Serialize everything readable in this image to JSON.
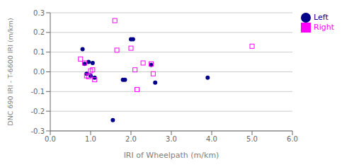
{
  "chart_data": {
    "type": "scatter",
    "x_label": "IRI of Wheelpath (m/km)",
    "y_label": "DNC 690 IRI - T-6600 IRI (m/km)",
    "series": [
      {
        "name": "Left",
        "color": "#00008B",
        "marker": "circle",
        "x": [
          0.8,
          0.85,
          0.9,
          0.95,
          1.0,
          1.05,
          1.1,
          1.55,
          1.8,
          1.85,
          2.0,
          2.05,
          2.5,
          2.6,
          3.9
        ],
        "values": [
          0.115,
          0.04,
          -0.01,
          0.05,
          -0.02,
          0.045,
          -0.03,
          -0.245,
          -0.04,
          -0.04,
          0.165,
          0.165,
          0.035,
          -0.055,
          -0.03
        ]
      },
      {
        "name": "Right",
        "color": "#FF00FF",
        "marker": "open_square",
        "x": [
          0.75,
          0.85,
          0.9,
          0.95,
          1.0,
          1.05,
          1.1,
          1.6,
          1.65,
          2.0,
          2.1,
          2.15,
          2.3,
          2.5,
          2.55,
          5.0
        ],
        "values": [
          0.065,
          0.045,
          -0.02,
          -0.025,
          0.005,
          0.01,
          -0.04,
          0.26,
          0.11,
          0.12,
          0.01,
          -0.09,
          0.045,
          0.04,
          -0.01,
          0.13
        ]
      }
    ],
    "xlim": [
      0.0,
      6.0
    ],
    "ylim": [
      -0.3,
      0.3
    ],
    "xticks": [
      {
        "value": 0,
        "label": "0.0"
      },
      {
        "value": 1,
        "label": "1.0"
      },
      {
        "value": 2,
        "label": "2.0"
      },
      {
        "value": 3,
        "label": "3.0"
      },
      {
        "value": 4,
        "label": "4.0"
      },
      {
        "value": 5,
        "label": "5.0"
      },
      {
        "value": 6,
        "label": "6.0"
      }
    ],
    "yticks": [
      -0.3,
      -0.2,
      -0.1,
      {
        "value": 0,
        "label": "0.0"
      },
      0.1,
      0.2,
      0.3
    ],
    "grid": "y",
    "legend": "right"
  }
}
